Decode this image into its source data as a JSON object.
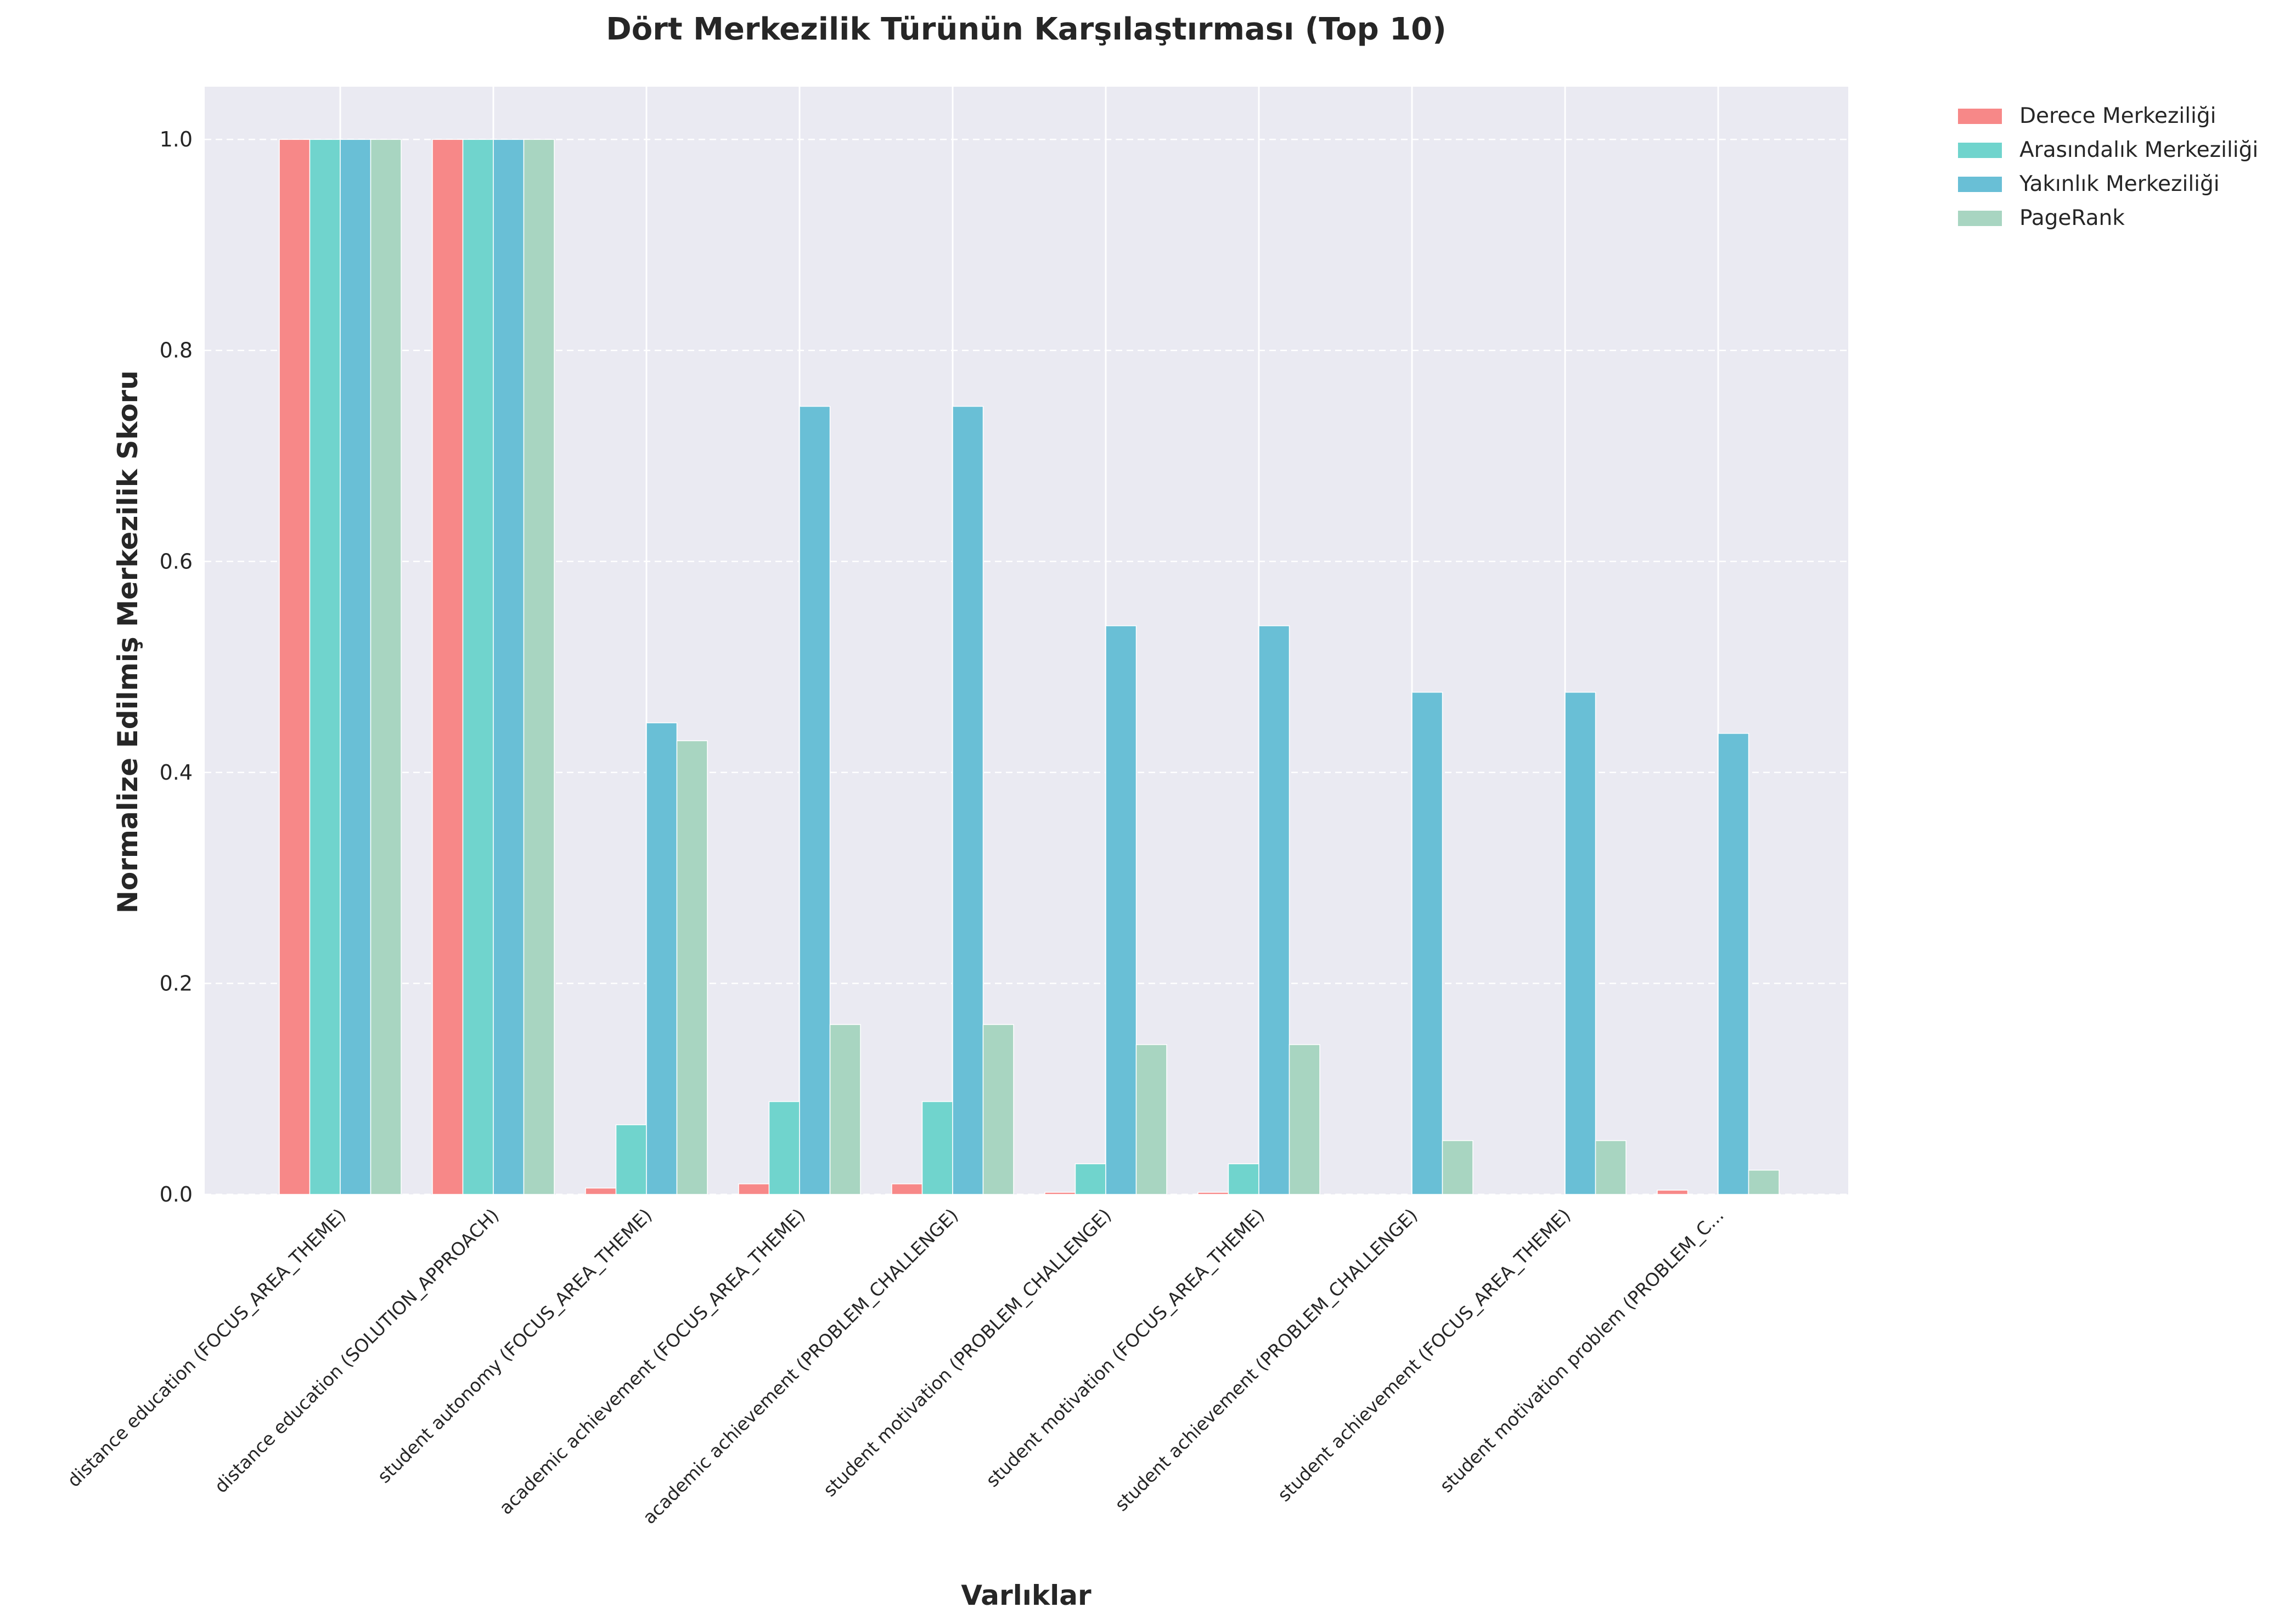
{
  "chart_data": {
    "type": "bar",
    "title": "Dört Merkezilik Türünün Karşılaştırması (Top 10)",
    "xlabel": "Varlıklar",
    "ylabel": "Normalize Edilmiş Merkezilik Skoru",
    "ylim": [
      0,
      1.05
    ],
    "yticks": [
      "0.0",
      "0.2",
      "0.4",
      "0.6",
      "0.8",
      "1.0"
    ],
    "grid": true,
    "legend_position": "outside-top-right",
    "categories": [
      "distance education (FOCUS_AREA_THEME)",
      "distance education (SOLUTION_APPROACH)",
      "student autonomy (FOCUS_AREA_THEME)",
      "academic achievement (FOCUS_AREA_THEME)",
      "academic achievement (PROBLEM_CHALLENGE)",
      "student motivation (PROBLEM_CHALLENGE)",
      "student motivation (FOCUS_AREA_THEME)",
      "student achievement (PROBLEM_CHALLENGE)",
      "student achievement (FOCUS_AREA_THEME)",
      "student motivation problem (PROBLEM_C..."
    ],
    "series": [
      {
        "name": "Derece Merkeziliği",
        "color": "#f78888",
        "values": [
          1.0,
          1.0,
          0.006,
          0.01,
          0.01,
          0.002,
          0.002,
          0.0,
          0.0,
          0.004
        ]
      },
      {
        "name": "Arasındalık Merkeziliği",
        "color": "#70d4cd",
        "values": [
          1.0,
          1.0,
          0.066,
          0.088,
          0.088,
          0.029,
          0.029,
          0.0,
          0.0,
          0.0
        ]
      },
      {
        "name": "Yakınlık Merkeziliği",
        "color": "#69bfd6",
        "values": [
          1.0,
          1.0,
          0.447,
          0.747,
          0.747,
          0.539,
          0.539,
          0.476,
          0.476,
          0.437
        ]
      },
      {
        "name": "PageRank",
        "color": "#a8d5c1",
        "values": [
          1.0,
          1.0,
          0.43,
          0.161,
          0.161,
          0.142,
          0.142,
          0.051,
          0.051,
          0.023
        ]
      }
    ]
  },
  "colors": {
    "plot_background": "#eaeaf2",
    "grid_major": "#ffffff"
  }
}
